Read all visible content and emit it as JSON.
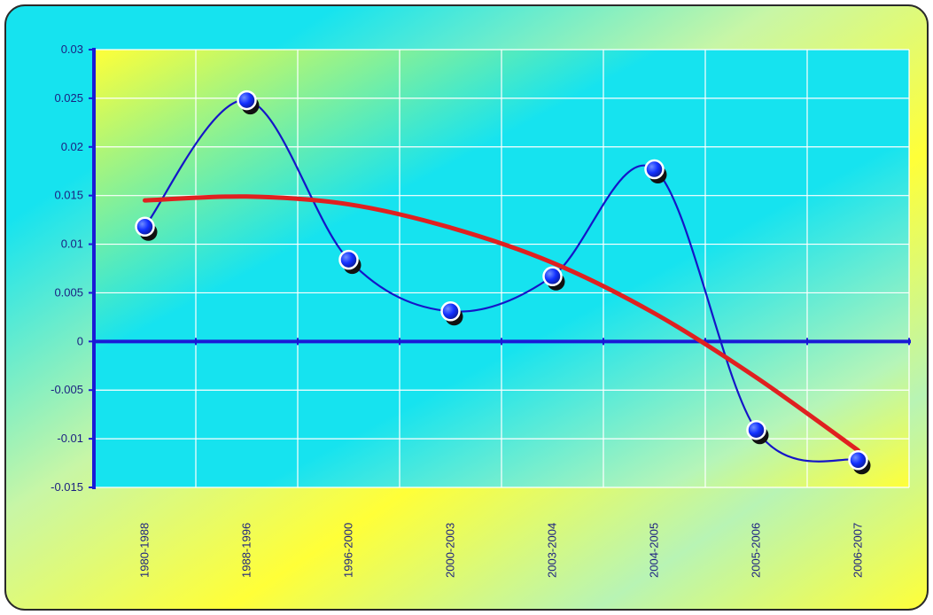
{
  "chart_data": {
    "type": "line",
    "categories": [
      "1980-1988",
      "1988-1996",
      "1996-2000",
      "2000-2003",
      "2003-2004",
      "2004-2005",
      "2005-2006",
      "2006-2007"
    ],
    "series": [
      {
        "values": [
          0.0118,
          0.0248,
          0.0084,
          0.0031,
          0.0067,
          0.0177,
          -0.0091,
          -0.0122
        ],
        "color": "#1515c8",
        "marker": "circle",
        "smooth": true
      },
      {
        "values": [
          0.0145,
          0.0149,
          0.0141,
          0.0117,
          0.0081,
          0.0029,
          -0.0037,
          -0.0112
        ],
        "color": "#e02020",
        "marker": "none",
        "smooth": true,
        "role": "trendline"
      }
    ],
    "y_ticks": [
      "0.03",
      "0.025",
      "0.02",
      "0.015",
      "0.01",
      "0.005",
      "0",
      "-0.005",
      "-0.01",
      "-0.015"
    ],
    "ylim": [
      -0.015,
      0.03
    ],
    "grid": true,
    "title": "",
    "xlabel": "",
    "ylabel": "",
    "colors": {
      "axis": "#1a1ad6",
      "grid": "#ffffff",
      "marker_fill": "#1230ff",
      "marker_shadow": "#111111",
      "bg_cyan": "#16e3ef",
      "bg_yellow": "#ffff38"
    }
  }
}
